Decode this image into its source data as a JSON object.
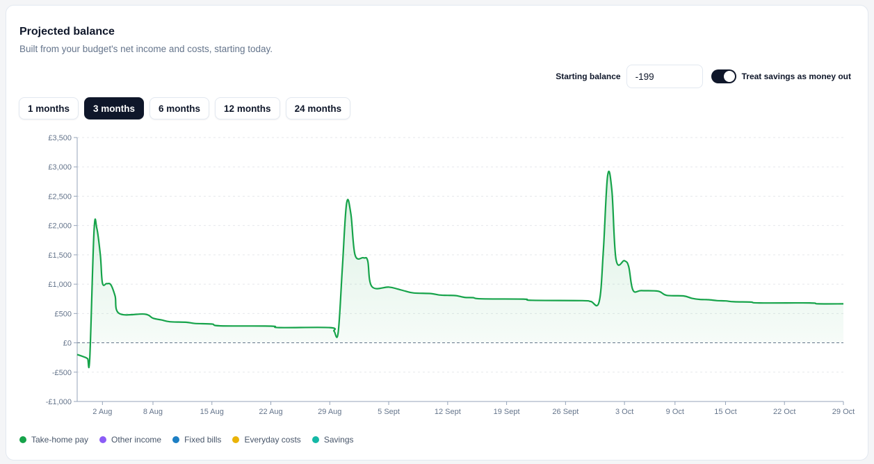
{
  "header": {
    "title": "Projected balance",
    "subtitle": "Built from your budget's net income and costs, starting today."
  },
  "controls": {
    "starting_balance_label": "Starting balance",
    "starting_balance_value": "-199",
    "treat_savings_label": "Treat savings as money out",
    "treat_savings_on": true
  },
  "ranges": [
    {
      "label": "1 months",
      "active": false
    },
    {
      "label": "3 months",
      "active": true
    },
    {
      "label": "6 months",
      "active": false
    },
    {
      "label": "12 months",
      "active": false
    },
    {
      "label": "24 months",
      "active": false
    }
  ],
  "legend": [
    {
      "label": "Take-home pay",
      "color": "#16a34a"
    },
    {
      "label": "Other income",
      "color": "#8b5cf6"
    },
    {
      "label": "Fixed bills",
      "color": "#1d7fc4"
    },
    {
      "label": "Everyday costs",
      "color": "#eab308"
    },
    {
      "label": "Savings",
      "color": "#14b8a6"
    }
  ],
  "chart_data": {
    "type": "area",
    "x_unit": "date",
    "x_start": "2025-07-30",
    "x_end": "2025-10-29",
    "ylim": [
      -1000,
      3500
    ],
    "yticks": [
      3500,
      3000,
      2500,
      2000,
      1500,
      1000,
      500,
      0,
      -500,
      -1000
    ],
    "ytick_labels": [
      "£3,500",
      "£3,000",
      "£2,500",
      "£2,000",
      "£1,500",
      "£1,000",
      "£500",
      "£0",
      "-£500",
      "-£1,000"
    ],
    "xticks": [
      "2025-08-02",
      "2025-08-08",
      "2025-08-15",
      "2025-08-22",
      "2025-08-29",
      "2025-09-05",
      "2025-09-12",
      "2025-09-19",
      "2025-09-26",
      "2025-10-03",
      "2025-10-09",
      "2025-10-15",
      "2025-10-22",
      "2025-10-29"
    ],
    "xtick_labels": [
      "2 Aug",
      "8 Aug",
      "15 Aug",
      "22 Aug",
      "29 Aug",
      "5 Sept",
      "12 Sept",
      "19 Sept",
      "26 Sept",
      "3 Oct",
      "9 Oct",
      "15 Oct",
      "22 Oct",
      "29 Oct"
    ],
    "grid": true,
    "zero_line": true,
    "series": [
      {
        "color": "#16a34a",
        "fill": true,
        "points": [
          [
            "2025-07-30",
            -199
          ],
          [
            "2025-07-31",
            -250
          ],
          [
            "2025-07-31 06:00",
            -270
          ],
          [
            "2025-07-31 12:00",
            -240
          ],
          [
            "2025-08-01",
            1900
          ],
          [
            "2025-08-01 08:00",
            1950
          ],
          [
            "2025-08-01 18:00",
            1500
          ],
          [
            "2025-08-02",
            1020
          ],
          [
            "2025-08-02 12:00",
            1010
          ],
          [
            "2025-08-03",
            990
          ],
          [
            "2025-08-03 12:00",
            800
          ],
          [
            "2025-08-04",
            500
          ],
          [
            "2025-08-07",
            490
          ],
          [
            "2025-08-08",
            420
          ],
          [
            "2025-08-09",
            390
          ],
          [
            "2025-08-10",
            360
          ],
          [
            "2025-08-12",
            350
          ],
          [
            "2025-08-13",
            330
          ],
          [
            "2025-08-15",
            320
          ],
          [
            "2025-08-16",
            290
          ],
          [
            "2025-08-22",
            285
          ],
          [
            "2025-08-23",
            260
          ],
          [
            "2025-08-29",
            260
          ],
          [
            "2025-08-29 12:00",
            200
          ],
          [
            "2025-08-30",
            180
          ],
          [
            "2025-08-30 12:00",
            1300
          ],
          [
            "2025-08-31",
            2380
          ],
          [
            "2025-08-31 12:00",
            2200
          ],
          [
            "2025-09-01",
            1500
          ],
          [
            "2025-09-02",
            1450
          ],
          [
            "2025-09-02 12:00",
            1400
          ],
          [
            "2025-09-03",
            960
          ],
          [
            "2025-09-05",
            950
          ],
          [
            "2025-09-06",
            920
          ],
          [
            "2025-09-07",
            880
          ],
          [
            "2025-09-08",
            850
          ],
          [
            "2025-09-10",
            840
          ],
          [
            "2025-09-11",
            815
          ],
          [
            "2025-09-12",
            810
          ],
          [
            "2025-09-13",
            805
          ],
          [
            "2025-09-14",
            775
          ],
          [
            "2025-09-15",
            770
          ],
          [
            "2025-09-16",
            750
          ],
          [
            "2025-09-21",
            745
          ],
          [
            "2025-09-22",
            725
          ],
          [
            "2025-09-28",
            720
          ],
          [
            "2025-09-29",
            705
          ],
          [
            "2025-09-30",
            705
          ],
          [
            "2025-09-30 12:00",
            1600
          ],
          [
            "2025-10-01",
            2850
          ],
          [
            "2025-10-01 12:00",
            2600
          ],
          [
            "2025-10-02",
            1420
          ],
          [
            "2025-10-03",
            1400
          ],
          [
            "2025-10-03 12:00",
            1300
          ],
          [
            "2025-10-04",
            900
          ],
          [
            "2025-10-05",
            890
          ],
          [
            "2025-10-07",
            880
          ],
          [
            "2025-10-08",
            810
          ],
          [
            "2025-10-10",
            800
          ],
          [
            "2025-10-11",
            760
          ],
          [
            "2025-10-12",
            740
          ],
          [
            "2025-10-13",
            735
          ],
          [
            "2025-10-14",
            720
          ],
          [
            "2025-10-15",
            715
          ],
          [
            "2025-10-16",
            700
          ],
          [
            "2025-10-18",
            695
          ],
          [
            "2025-10-19",
            680
          ],
          [
            "2025-10-25",
            680
          ],
          [
            "2025-10-26",
            665
          ],
          [
            "2025-10-29",
            665
          ]
        ]
      }
    ]
  }
}
